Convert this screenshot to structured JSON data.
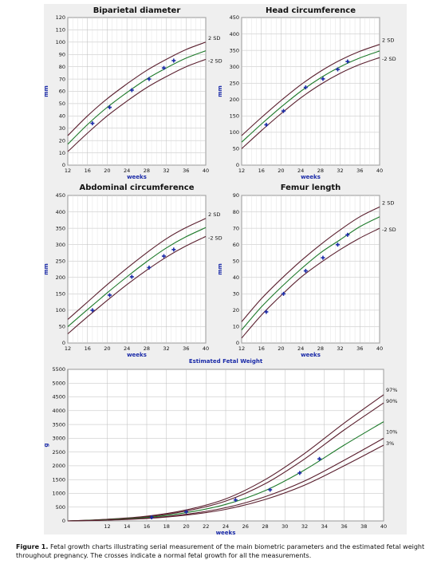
{
  "caption": {
    "label": "Figure 1.",
    "text": "Fetal growth charts illustrating serial measurement of the main biometric parameters and the estimated fetal weight throughout pregnancy. The crosses indicate a normal fetal growth for all the measurements."
  },
  "colors": {
    "outer_curves": "#5a1f2e",
    "median_curve": "#1d7a2a",
    "markers": "#1a2aa8",
    "title_text": "#1a2aa8",
    "panel_bg": "#efefef",
    "grid": "#bdbdbd"
  },
  "chart_data": [
    {
      "id": "bpd",
      "type": "line",
      "title": "Biparietal diameter",
      "xlabel": "weeks",
      "ylabel": "mm",
      "xlim": [
        12,
        40
      ],
      "ylim": [
        0,
        120
      ],
      "xticks": [
        12,
        16,
        20,
        24,
        28,
        32,
        36,
        40
      ],
      "yticks": [
        0,
        10,
        20,
        30,
        40,
        50,
        60,
        70,
        80,
        90,
        100,
        110,
        120
      ],
      "curve_labels": [
        "2 SD",
        "-2 SD"
      ],
      "series": [
        {
          "role": "upper",
          "x": [
            12,
            16,
            20,
            24,
            28,
            32,
            36,
            40
          ],
          "y": [
            24,
            40,
            54,
            66,
            77,
            86,
            94,
            100
          ]
        },
        {
          "role": "median",
          "x": [
            12,
            16,
            20,
            24,
            28,
            32,
            36,
            40
          ],
          "y": [
            17,
            33,
            47,
            59,
            70,
            79,
            87,
            93
          ]
        },
        {
          "role": "lower",
          "x": [
            12,
            16,
            20,
            24,
            28,
            32,
            36,
            40
          ],
          "y": [
            11,
            26,
            40,
            52,
            63,
            72,
            80,
            86
          ]
        }
      ],
      "points": {
        "x": [
          17,
          20.5,
          25,
          28.5,
          31.5,
          33.5
        ],
        "y": [
          34,
          47,
          61,
          70,
          79,
          85
        ]
      }
    },
    {
      "id": "hc",
      "type": "line",
      "title": "Head circumference",
      "xlabel": "weeks",
      "ylabel": "mm",
      "xlim": [
        12,
        40
      ],
      "ylim": [
        0,
        450
      ],
      "xticks": [
        12,
        16,
        20,
        24,
        28,
        32,
        36,
        40
      ],
      "yticks": [
        0,
        50,
        100,
        150,
        200,
        250,
        300,
        350,
        400,
        450
      ],
      "curve_labels": [
        "2 SD",
        "-2 SD"
      ],
      "series": [
        {
          "role": "upper",
          "x": [
            12,
            16,
            20,
            24,
            28,
            32,
            36,
            40
          ],
          "y": [
            90,
            145,
            197,
            245,
            286,
            320,
            347,
            368
          ]
        },
        {
          "role": "median",
          "x": [
            12,
            16,
            20,
            24,
            28,
            32,
            36,
            40
          ],
          "y": [
            70,
            125,
            177,
            225,
            266,
            300,
            327,
            348
          ]
        },
        {
          "role": "lower",
          "x": [
            12,
            16,
            20,
            24,
            28,
            32,
            36,
            40
          ],
          "y": [
            50,
            105,
            157,
            205,
            246,
            280,
            307,
            328
          ]
        }
      ],
      "points": {
        "x": [
          17,
          20.5,
          25,
          28.5,
          31.5,
          33.5
        ],
        "y": [
          123,
          165,
          237,
          263,
          292,
          316
        ]
      }
    },
    {
      "id": "ac",
      "type": "line",
      "title": "Abdominal circumference",
      "xlabel": "weeks",
      "ylabel": "mm",
      "xlim": [
        12,
        40
      ],
      "ylim": [
        0,
        450
      ],
      "xticks": [
        12,
        16,
        20,
        24,
        28,
        32,
        36,
        40
      ],
      "yticks": [
        0,
        50,
        100,
        150,
        200,
        250,
        300,
        350,
        400,
        450
      ],
      "curve_labels": [
        "2 SD",
        "-2 SD"
      ],
      "series": [
        {
          "role": "upper",
          "x": [
            12,
            16,
            20,
            24,
            28,
            32,
            36,
            40
          ],
          "y": [
            72,
            125,
            178,
            228,
            275,
            318,
            352,
            380
          ]
        },
        {
          "role": "median",
          "x": [
            12,
            16,
            20,
            24,
            28,
            32,
            36,
            40
          ],
          "y": [
            50,
            102,
            153,
            202,
            248,
            290,
            324,
            352
          ]
        },
        {
          "role": "lower",
          "x": [
            12,
            16,
            20,
            24,
            28,
            32,
            36,
            40
          ],
          "y": [
            28,
            80,
            130,
            178,
            222,
            262,
            296,
            325
          ]
        }
      ],
      "points": {
        "x": [
          17,
          20.5,
          25,
          28.5,
          31.5,
          33.5
        ],
        "y": [
          100,
          146,
          202,
          230,
          265,
          285
        ]
      }
    },
    {
      "id": "fl",
      "type": "line",
      "title": "Femur length",
      "xlabel": "weeks",
      "ylabel": "mm",
      "xlim": [
        12,
        40
      ],
      "ylim": [
        0,
        90
      ],
      "xticks": [
        12,
        16,
        20,
        24,
        28,
        32,
        36,
        40
      ],
      "yticks": [
        0,
        10,
        20,
        30,
        40,
        50,
        60,
        70,
        80,
        90
      ],
      "curve_labels": [
        "2 SD",
        "-2 SD"
      ],
      "series": [
        {
          "role": "upper",
          "x": [
            12,
            16,
            20,
            24,
            28,
            32,
            36,
            40
          ],
          "y": [
            13,
            27,
            39,
            50,
            60,
            69,
            77,
            83
          ]
        },
        {
          "role": "median",
          "x": [
            12,
            16,
            20,
            24,
            28,
            32,
            36,
            40
          ],
          "y": [
            8,
            22,
            34,
            45,
            55,
            63,
            71,
            77
          ]
        },
        {
          "role": "lower",
          "x": [
            12,
            16,
            20,
            24,
            28,
            32,
            36,
            40
          ],
          "y": [
            3,
            17,
            29,
            40,
            49,
            57,
            64,
            70
          ]
        }
      ],
      "points": {
        "x": [
          17,
          20.5,
          25,
          28.5,
          31.5,
          33.5
        ],
        "y": [
          19,
          30,
          44,
          52,
          60,
          66
        ]
      }
    },
    {
      "id": "efw",
      "type": "line",
      "title": "Estimated Fetal Weight",
      "xlabel": "weeks",
      "ylabel": "g",
      "xlim": [
        8,
        40
      ],
      "ylim": [
        0,
        5500
      ],
      "xticks": [
        12,
        14,
        16,
        18,
        20,
        22,
        24,
        26,
        28,
        30,
        32,
        34,
        36,
        38,
        40
      ],
      "yticks": [
        0,
        500,
        1000,
        1500,
        2000,
        2500,
        3000,
        3500,
        4000,
        4500,
        5000,
        5500
      ],
      "curve_labels": [
        "97%",
        "90%",
        "10%",
        "3%"
      ],
      "series": [
        {
          "role": "p97",
          "x": [
            8,
            12,
            16,
            20,
            24,
            28,
            32,
            36,
            40
          ],
          "y": [
            0,
            60,
            170,
            400,
            800,
            1500,
            2450,
            3550,
            4580
          ]
        },
        {
          "role": "p90",
          "x": [
            8,
            12,
            16,
            20,
            24,
            28,
            32,
            36,
            40
          ],
          "y": [
            0,
            55,
            150,
            360,
            720,
            1350,
            2250,
            3300,
            4280
          ]
        },
        {
          "role": "median",
          "x": [
            8,
            12,
            16,
            20,
            24,
            28,
            32,
            36,
            40
          ],
          "y": [
            0,
            45,
            125,
            300,
            600,
            1100,
            1850,
            2750,
            3600
          ]
        },
        {
          "role": "p10",
          "x": [
            8,
            12,
            16,
            20,
            24,
            28,
            32,
            36,
            40
          ],
          "y": [
            0,
            35,
            100,
            240,
            480,
            880,
            1450,
            2200,
            3000
          ]
        },
        {
          "role": "p3",
          "x": [
            8,
            12,
            16,
            20,
            24,
            28,
            32,
            36,
            40
          ],
          "y": [
            0,
            30,
            90,
            210,
            420,
            780,
            1300,
            2000,
            2750
          ]
        }
      ],
      "points": {
        "x": [
          16.5,
          20,
          25,
          28.5,
          31.5,
          33.5
        ],
        "y": [
          130,
          330,
          760,
          1130,
          1740,
          2250
        ]
      }
    }
  ]
}
